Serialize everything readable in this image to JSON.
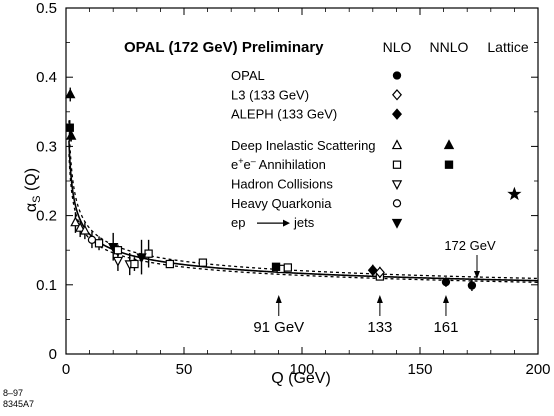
{
  "chart_data": {
    "type": "scatter",
    "title": "OPAL (172 GeV) Preliminary",
    "xlabel": "Q   (GeV)",
    "ylabel": "α",
    "ylabel_sub": "S",
    "ylabel_arg": " (Q)",
    "xlim": [
      0,
      200
    ],
    "ylim": [
      0,
      0.5
    ],
    "x_ticks": [
      0,
      50,
      100,
      150,
      200
    ],
    "y_ticks": [
      0,
      0.1,
      0.2,
      0.3,
      0.4,
      0.5
    ],
    "grid": false,
    "legend_columns": [
      "NLO",
      "NNLO",
      "Lattice"
    ],
    "legend_placement": "top-right",
    "legend_rows": [
      {
        "label": "OPAL",
        "nlo": "circle-filled",
        "nnlo": null
      },
      {
        "label": "L3 (133 GeV)",
        "nlo": "diamond-open",
        "nnlo": null
      },
      {
        "label": "ALEPH (133 GeV)",
        "nlo": "diamond-filled",
        "nnlo": null
      },
      {
        "label": "Deep Inelastic Scattering",
        "nlo": "triangle-up-open",
        "nnlo": "triangle-up-filled"
      },
      {
        "label_main": "e",
        "label_sup1": "+",
        "label_mid": "e",
        "label_sup2": "–",
        "label_tail": " Annihilation",
        "nlo": "square-open",
        "nnlo": "square-filled"
      },
      {
        "label": "Hadron Collisions",
        "nlo": "triangle-down-open",
        "nnlo": null
      },
      {
        "label": "Heavy Quarkonia",
        "nlo": "circle-open",
        "nnlo": null
      },
      {
        "label_main": "ep",
        "label_tail": "jets",
        "nlo": "triangle-down-filled",
        "nnlo": null
      }
    ],
    "lattice_marker": "star-filled",
    "annotations": [
      {
        "text": "172 GeV",
        "x": 172
      },
      {
        "text": "91 GeV",
        "x": 91
      },
      {
        "text": "133",
        "x": 133
      },
      {
        "text": "161",
        "x": 161
      }
    ],
    "side_codes": [
      "8–97",
      "8345A7"
    ],
    "series": [
      {
        "marker": "triangle-up-filled",
        "points": [
          {
            "x": 1.8,
            "y": 0.375,
            "err": 0.01
          }
        ]
      },
      {
        "marker": "square-filled",
        "points": [
          {
            "x": 1.6,
            "y": 0.327,
            "err": 0.011
          }
        ]
      },
      {
        "marker": "triangle-up-filled",
        "points": [
          {
            "x": 2.2,
            "y": 0.315,
            "err": 0.008
          }
        ]
      },
      {
        "marker": "triangle-up-open",
        "points": [
          {
            "x": 4,
            "y": 0.19,
            "err": 0.015
          },
          {
            "x": 6,
            "y": 0.182,
            "err": 0.013
          },
          {
            "x": 8,
            "y": 0.178,
            "err": 0.012
          }
        ]
      },
      {
        "marker": "circle-open",
        "points": [
          {
            "x": 11,
            "y": 0.165,
            "err": 0.012
          }
        ]
      },
      {
        "marker": "triangle-down-filled",
        "points": [
          {
            "x": 20,
            "y": 0.155,
            "err": 0.02
          }
        ]
      },
      {
        "marker": "triangle-down-open",
        "points": [
          {
            "x": 22,
            "y": 0.135,
            "err": 0.015
          },
          {
            "x": 27,
            "y": 0.13,
            "err": 0.016
          }
        ]
      },
      {
        "marker": "square-open",
        "points": [
          {
            "x": 14,
            "y": 0.16,
            "err": 0.01
          },
          {
            "x": 22,
            "y": 0.15,
            "err": 0.008
          },
          {
            "x": 29,
            "y": 0.13,
            "err": 0.01
          },
          {
            "x": 35,
            "y": 0.145,
            "err": 0.02
          },
          {
            "x": 44,
            "y": 0.13,
            "err": 0.005
          },
          {
            "x": 58,
            "y": 0.132,
            "err": 0.005
          },
          {
            "x": 91,
            "y": 0.123,
            "err": 0.004
          },
          {
            "x": 94,
            "y": 0.125,
            "err": 0.004
          },
          {
            "x": 133,
            "y": 0.112,
            "err": 0.005
          }
        ]
      },
      {
        "marker": "square-filled",
        "points": [
          {
            "x": 89,
            "y": 0.126,
            "err": 0.003
          }
        ]
      },
      {
        "marker": "triangle-down-filled",
        "points": [
          {
            "x": 32,
            "y": 0.14,
            "err": 0.025
          }
        ]
      },
      {
        "marker": "diamond-filled",
        "points": [
          {
            "x": 130,
            "y": 0.121,
            "err": 0.008
          }
        ]
      },
      {
        "marker": "diamond-open",
        "points": [
          {
            "x": 133,
            "y": 0.118,
            "err": 0.008
          }
        ]
      },
      {
        "marker": "circle-filled",
        "points": [
          {
            "x": 161,
            "y": 0.104,
            "err": 0.007
          },
          {
            "x": 172,
            "y": 0.099,
            "err": 0.008
          }
        ]
      },
      {
        "marker": "star-filled",
        "points": [
          {
            "x": 190,
            "y": 0.231,
            "err": 0
          }
        ]
      }
    ],
    "curves": {
      "description_none": "",
      "central_alpha_mz": 0.118,
      "band_alpha_mz": [
        0.115,
        0.122
      ],
      "mz": 91.19
    }
  }
}
